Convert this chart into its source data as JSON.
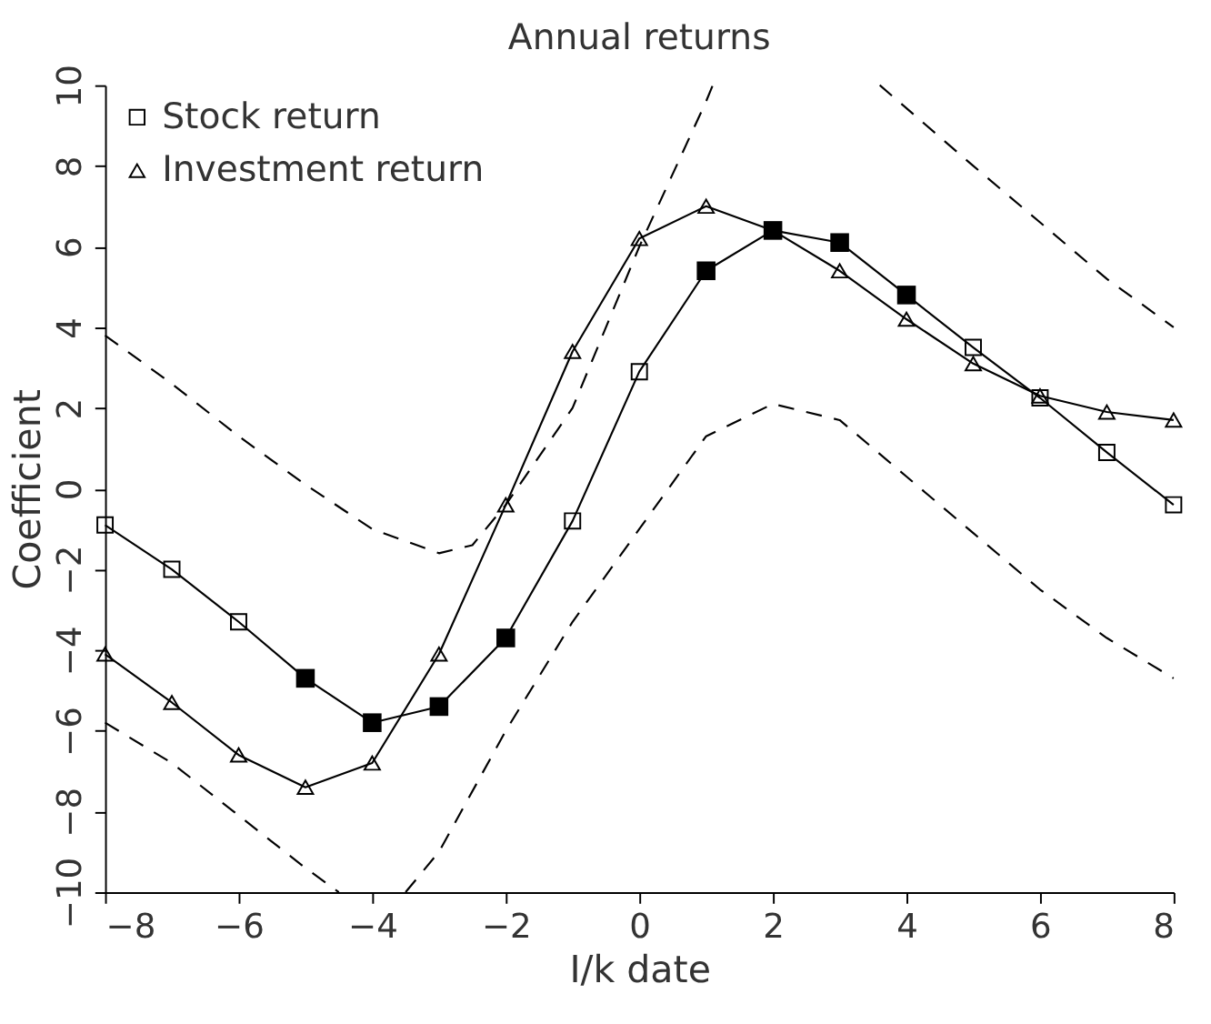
{
  "chart_data": {
    "type": "line",
    "title": "Annual returns",
    "xlabel": "I/k date",
    "ylabel": "Coefficient",
    "xlim": [
      -8,
      8
    ],
    "xticks": [
      -8,
      -6,
      -4,
      -2,
      0,
      2,
      4,
      6,
      8
    ],
    "ylim": [
      -10,
      10
    ],
    "yticks": [
      -10,
      -8,
      -6,
      -4,
      -2,
      0,
      2,
      4,
      6,
      8,
      10
    ],
    "grid": false,
    "legend": "top left",
    "series": [
      {
        "name": "Stock return",
        "color": "#000000",
        "marker": "square",
        "line_style": "solid",
        "x": [
          -8,
          -7,
          -6,
          -5,
          -4,
          -3,
          -2,
          -1,
          0,
          1,
          2,
          3,
          4,
          5,
          6,
          7,
          8
        ],
        "values": [
          -0.9,
          -2.0,
          -3.3,
          -4.7,
          -5.8,
          -5.4,
          -3.7,
          -0.8,
          2.9,
          5.4,
          6.4,
          6.1,
          4.8,
          3.5,
          2.25,
          0.9,
          -0.4
        ]
      },
      {
        "name": "Investment return",
        "color": "#000000",
        "marker": "triangle",
        "line_style": "solid",
        "x": [
          -8,
          -7,
          -6,
          -5,
          -4,
          -3,
          -2,
          -1,
          0,
          1,
          2,
          3,
          4,
          5,
          6,
          7,
          8
        ],
        "values": [
          -4.1,
          -5.3,
          -6.6,
          -7.4,
          -6.8,
          -4.1,
          -0.4,
          3.4,
          6.2,
          7.0,
          6.4,
          5.4,
          4.2,
          3.1,
          2.3,
          1.9,
          1.7
        ]
      },
      {
        "type": "scatter",
        "color": "#000000",
        "marker": "square",
        "x": [
          -5,
          -4,
          -3,
          -2,
          1,
          2,
          3,
          4
        ],
        "values": [
          -4.7,
          -5.8,
          -5.4,
          -3.7,
          5.4,
          6.4,
          6.1,
          4.8
        ]
      },
      {
        "type": "line",
        "color": "#000000",
        "marker": "none",
        "line_style": "dashed",
        "x": [
          -8,
          -7,
          -6,
          -5,
          -4,
          -3,
          -2.5,
          -2,
          -1,
          0,
          1,
          1.1,
          2,
          3,
          3.6,
          5,
          6,
          7,
          8
        ],
        "values": [
          3.8,
          2.6,
          1.3,
          0.1,
          -1.0,
          -1.6,
          -1.4,
          -0.4,
          2.0,
          6.0,
          9.6,
          10,
          null,
          null,
          10,
          8.0,
          6.6,
          5.2,
          4.0
        ]
      },
      {
        "type": "line",
        "color": "#000000",
        "marker": "none",
        "line_style": "dashed",
        "x": [
          -8,
          -7,
          -6,
          -5,
          -4.5,
          -4,
          -3.5,
          -3,
          -2,
          -1,
          0,
          1,
          2,
          3,
          4,
          5,
          6,
          7,
          8
        ],
        "values": [
          -5.8,
          -6.8,
          -8.1,
          -9.4,
          -10,
          null,
          -10,
          -9.0,
          -6.0,
          -3.3,
          -1.0,
          1.3,
          2.1,
          1.7,
          0.3,
          -1.1,
          -2.5,
          -3.7,
          -4.7
        ]
      }
    ]
  }
}
